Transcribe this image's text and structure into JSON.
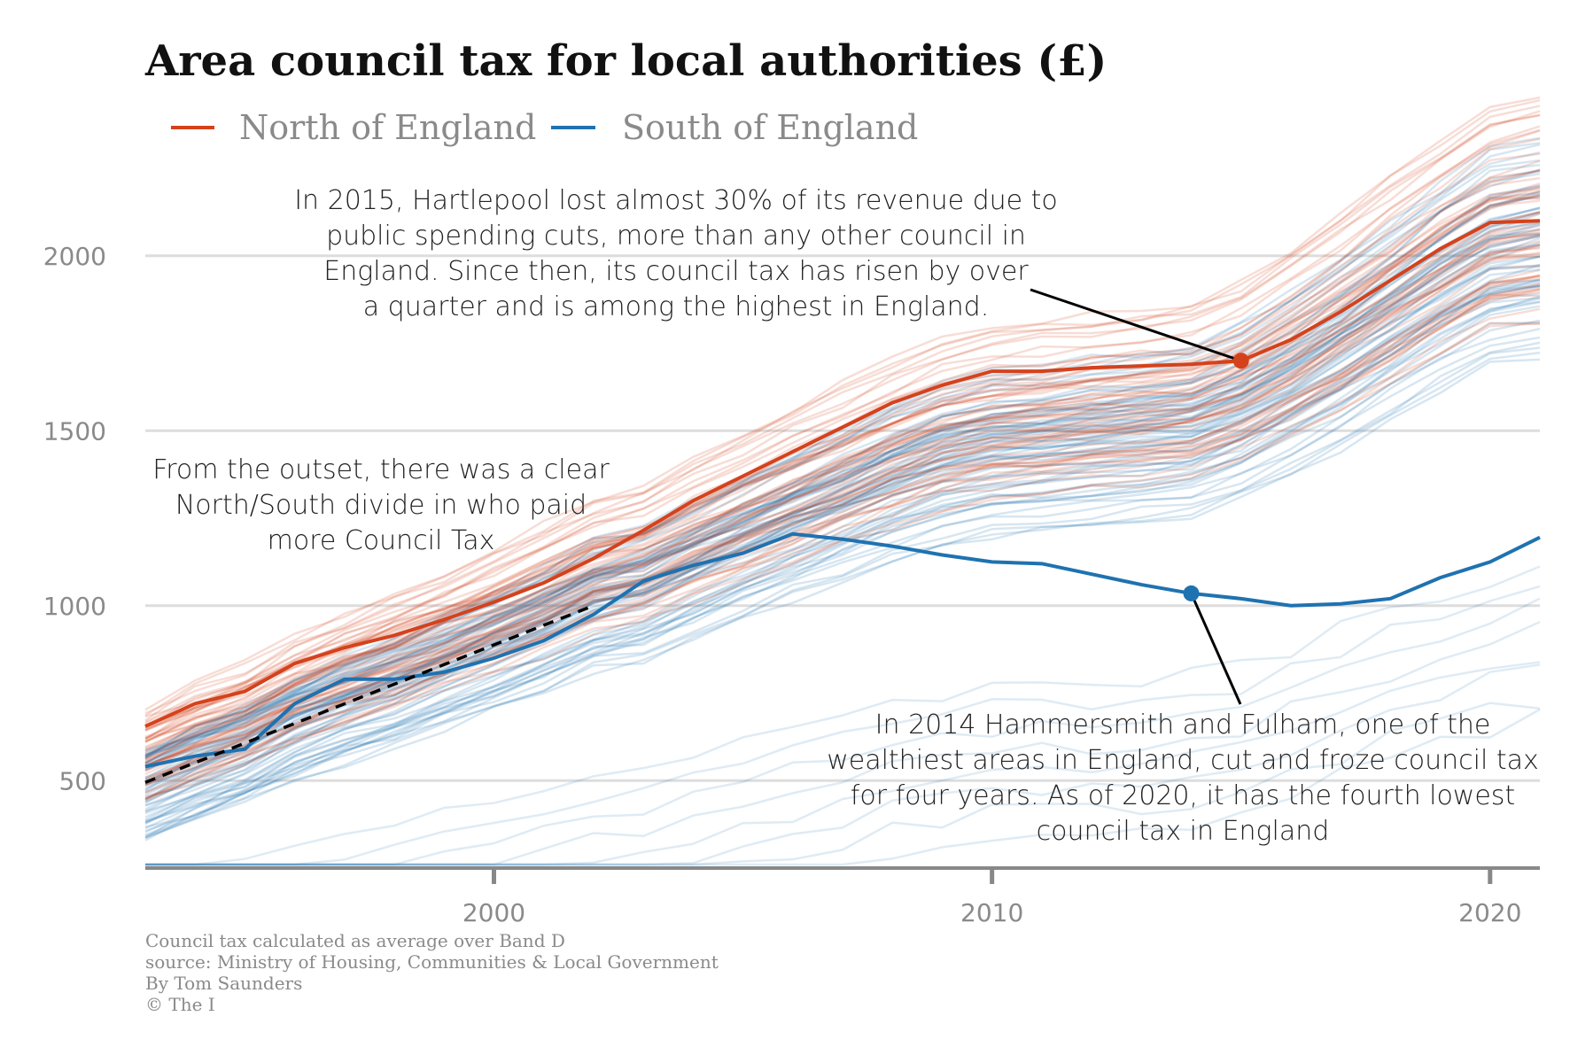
{
  "chart_data": {
    "type": "line",
    "title": "Area council tax for local authorities (£)",
    "xlabel": "",
    "ylabel": "",
    "xlim": [
      1993,
      2021
    ],
    "ylim": [
      250,
      2250
    ],
    "y_ticks": [
      500,
      1000,
      1500,
      2000
    ],
    "x_ticks": [
      2000,
      2010,
      2020
    ],
    "grid": true,
    "legend_position": "top-left",
    "legend": [
      {
        "name": "North of England",
        "color": "#d4421c"
      },
      {
        "name": "South of England",
        "color": "#1f72b0"
      }
    ],
    "colors": {
      "north": "#d4421c",
      "south": "#1f72b0",
      "gridline": "#dddddd",
      "axis": "#888888",
      "trend": "#000000"
    },
    "series": [
      {
        "name": "Hartlepool",
        "region": "North of England",
        "highlight": true,
        "x": [
          1993,
          1994,
          1995,
          1996,
          1997,
          1998,
          1999,
          2000,
          2001,
          2002,
          2003,
          2004,
          2005,
          2006,
          2007,
          2008,
          2009,
          2010,
          2011,
          2012,
          2013,
          2014,
          2015,
          2016,
          2017,
          2018,
          2019,
          2020,
          2021
        ],
        "values": [
          655,
          720,
          755,
          835,
          880,
          915,
          960,
          1010,
          1065,
          1135,
          1215,
          1300,
          1370,
          1440,
          1510,
          1580,
          1630,
          1670,
          1670,
          1680,
          1685,
          1690,
          1700,
          1760,
          1840,
          1930,
          2020,
          2095,
          2100
        ]
      },
      {
        "name": "Hammersmith and Fulham",
        "region": "South of England",
        "highlight": true,
        "x": [
          1993,
          1994,
          1995,
          1996,
          1997,
          1998,
          1999,
          2000,
          2001,
          2002,
          2003,
          2004,
          2005,
          2006,
          2007,
          2008,
          2009,
          2010,
          2011,
          2012,
          2013,
          2014,
          2015,
          2016,
          2017,
          2018,
          2019,
          2020,
          2021
        ],
        "values": [
          540,
          570,
          590,
          720,
          790,
          790,
          810,
          850,
          900,
          975,
          1070,
          1115,
          1150,
          1205,
          1190,
          1170,
          1145,
          1125,
          1120,
          1090,
          1060,
          1035,
          1020,
          1000,
          1005,
          1020,
          1080,
          1125,
          1195
        ]
      },
      {
        "name": "North/South divide trend",
        "style": "dashed",
        "x": [
          1993,
          2002
        ],
        "values": [
          495,
          1000
        ]
      }
    ],
    "annotations": {
      "hartlepool": {
        "lines": [
          "In 2015, Hartlepool lost almost 30% of its revenue due to",
          "public spending cuts, more than any other council in",
          "England. Since then, its council tax has risen by over",
          "a quarter and is among the highest in England."
        ],
        "point": {
          "x": 2015,
          "y": 1700
        }
      },
      "divide": {
        "lines": [
          "From the outset, there was a clear",
          "North/South divide in who paid",
          "more Council Tax"
        ]
      },
      "hammersmith": {
        "lines": [
          "In 2014 Hammersmith and Fulham, one of the",
          "wealthiest areas in England, cut and froze council tax",
          "for four years. As of 2020, it has the fourth lowest",
          "council tax in England"
        ],
        "point": {
          "x": 2014,
          "y": 1035
        }
      }
    },
    "footer": [
      "Council tax calculated as average over Band D",
      "source: Ministry of Housing, Communities & Local Government",
      "By Tom Saunders",
      "© The I"
    ]
  }
}
